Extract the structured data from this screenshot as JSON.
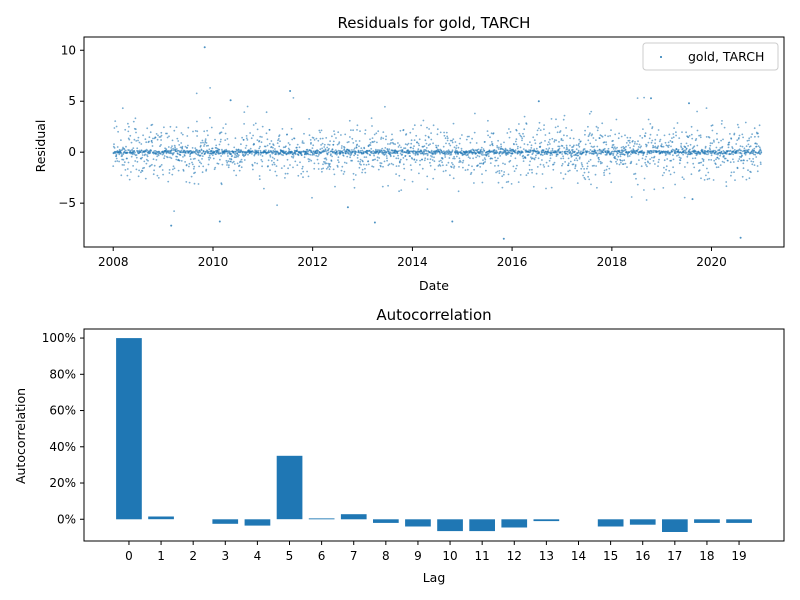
{
  "chart_data": [
    {
      "type": "scatter",
      "title": "Residuals for gold, TARCH",
      "xlabel": "Date",
      "ylabel": "Residual",
      "x_range": [
        "2008-01-01",
        "2020-12-31"
      ],
      "xlim": [
        "2007-06-01",
        "2021-06-15"
      ],
      "ylim": [
        -9.3,
        11.3
      ],
      "xticks": [
        "2008",
        "2010",
        "2012",
        "2014",
        "2016",
        "2018",
        "2020"
      ],
      "yticks": [
        "−5",
        "0",
        "5",
        "10"
      ],
      "series": [
        {
          "name": "gold, TARCH",
          "color": "#1f77b4",
          "marker": "point"
        }
      ],
      "legend_location": "top-right",
      "notable_points": [
        {
          "x": "2009-11-01",
          "y": 10.3
        },
        {
          "x": "2011-07-20",
          "y": 6.0
        },
        {
          "x": "2010-05-10",
          "y": 5.1
        },
        {
          "x": "2018-10-15",
          "y": 5.3
        },
        {
          "x": "2019-07-20",
          "y": 4.8
        },
        {
          "x": "2016-07-15",
          "y": 5.0
        },
        {
          "x": "2009-03-01",
          "y": -7.2
        },
        {
          "x": "2010-02-20",
          "y": -6.8
        },
        {
          "x": "2013-04-01",
          "y": -6.9
        },
        {
          "x": "2014-10-20",
          "y": -6.8
        },
        {
          "x": "2015-11-01",
          "y": -8.5
        },
        {
          "x": "2020-08-01",
          "y": -8.4
        },
        {
          "x": "2012-09-15",
          "y": -5.4
        },
        {
          "x": "2019-08-15",
          "y": -4.6
        }
      ],
      "grid": false
    },
    {
      "type": "bar",
      "title": "Autocorrelation",
      "xlabel": "Lag",
      "ylabel": "Autocorrelation",
      "categories": [
        "0",
        "1",
        "2",
        "3",
        "4",
        "5",
        "6",
        "7",
        "8",
        "9",
        "10",
        "11",
        "12",
        "13",
        "14",
        "15",
        "16",
        "17",
        "18",
        "19"
      ],
      "values": [
        100.0,
        1.5,
        0.0,
        -2.5,
        -3.5,
        35.0,
        0.5,
        2.8,
        -2.0,
        -4.0,
        -6.5,
        -6.5,
        -4.5,
        -1.0,
        0.0,
        -4.0,
        -3.0,
        -7.0,
        -2.0,
        -2.0
      ],
      "yticks": [
        "0%",
        "20%",
        "40%",
        "60%",
        "80%",
        "100%"
      ],
      "ylim": [
        -12,
        105
      ],
      "color": "#1f77b4",
      "grid": false
    }
  ]
}
